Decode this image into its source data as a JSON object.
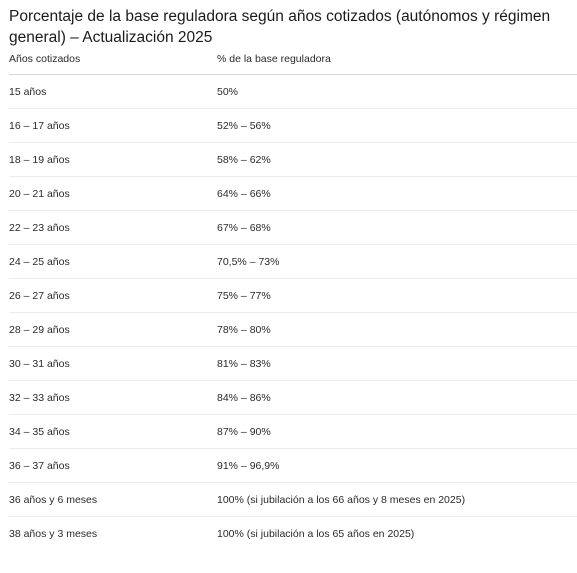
{
  "title": "Porcentaje de la base reguladora según años cotizados (autónomos y régimen general) – Actualización 2025",
  "table": {
    "headers": [
      "Años cotizados",
      "% de la base reguladora"
    ],
    "rows": [
      [
        "15 años",
        "50%"
      ],
      [
        "16 – 17 años",
        "52% – 56%"
      ],
      [
        "18 – 19 años",
        "58% – 62%"
      ],
      [
        "20 – 21 años",
        "64% – 66%"
      ],
      [
        "22 – 23 años",
        "67% – 68%"
      ],
      [
        "24 – 25 años",
        "70,5% – 73%"
      ],
      [
        "26 – 27 años",
        "75% – 77%"
      ],
      [
        "28 – 29 años",
        "78% – 80%"
      ],
      [
        "30 – 31 años",
        "81% – 83%"
      ],
      [
        "32 – 33 años",
        "84% – 86%"
      ],
      [
        "34 – 35 años",
        "87% – 90%"
      ],
      [
        "36 – 37 años",
        "91% – 96,9%"
      ],
      [
        "36 años y 6 meses",
        "100% (si jubilación a los 66 años y 8 meses en 2025)"
      ],
      [
        "38 años y 3 meses",
        "100% (si jubilación a los 65 años en 2025)"
      ]
    ]
  }
}
